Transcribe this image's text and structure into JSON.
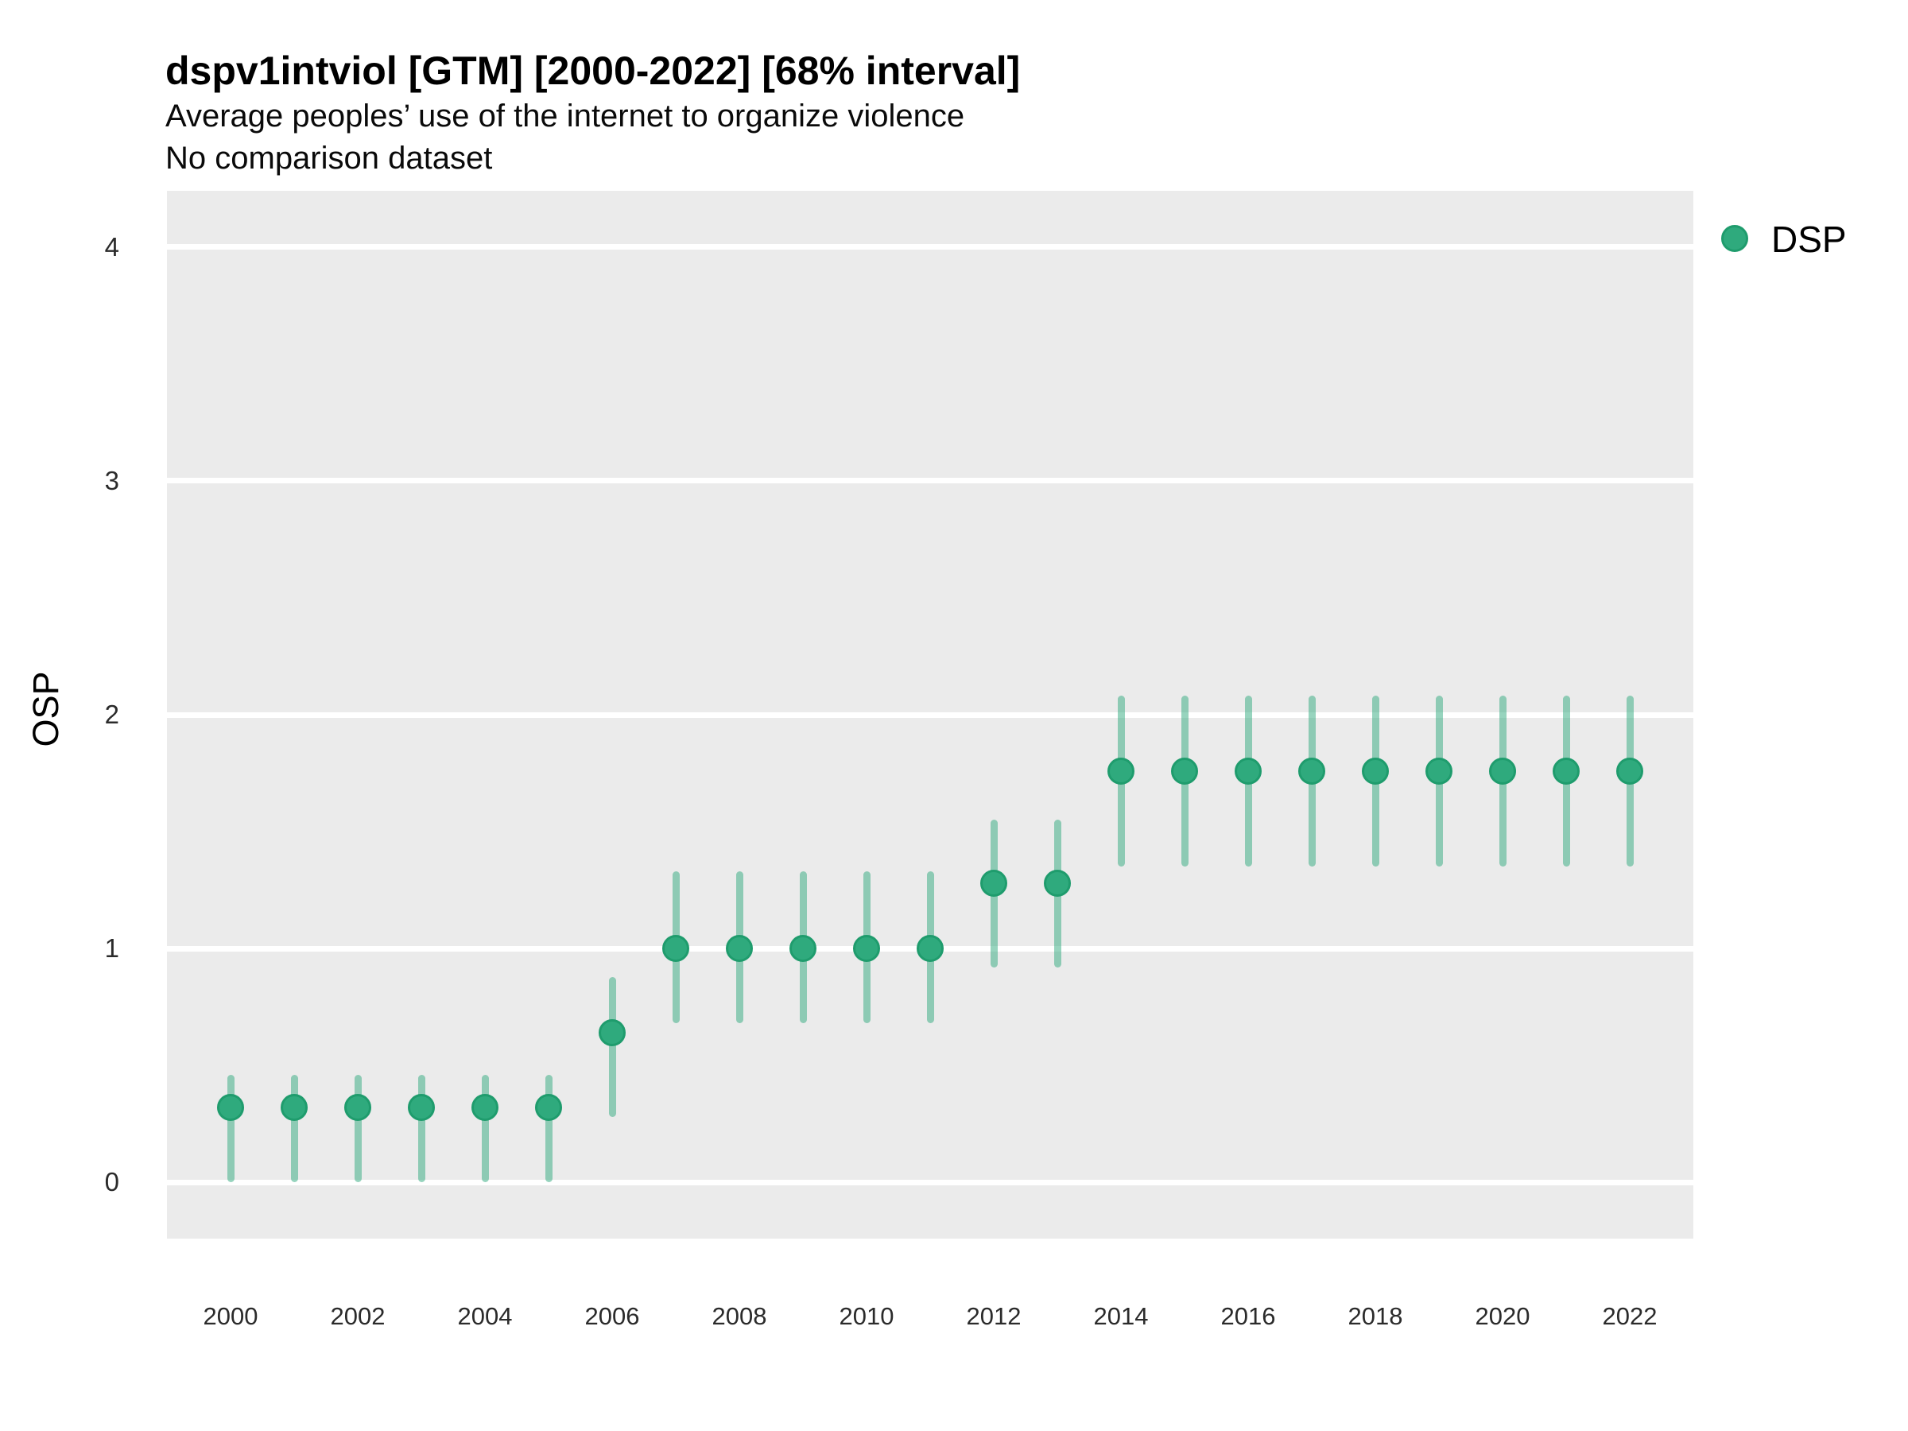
{
  "colors": {
    "plot_background": "#ebebeb",
    "gridline": "#ffffff",
    "point_fill": "#2faa7d",
    "point_stroke": "#1f9c6d",
    "errorbar": "rgba(47,170,125,0.5)",
    "text": "#000000",
    "tick_text": "#2b2b2b"
  },
  "legend": {
    "label": "DSP",
    "swatch_color": "#2faa7d",
    "position": "right"
  },
  "chart_data": {
    "type": "scatter",
    "subtype": "pointrange-interval",
    "title": "dspv1intviol [GTM] [2000-2022] [68% interval]",
    "subtitle": "Average peoples’ use of the internet to organize violence",
    "note": "No comparison dataset",
    "xlabel": "",
    "ylabel": "OSP",
    "xlim": [
      1999,
      2023
    ],
    "ylim": [
      -0.24,
      4.24
    ],
    "y_ticks": [
      0,
      1,
      2,
      3,
      4
    ],
    "x_ticks": [
      2000,
      2002,
      2004,
      2006,
      2008,
      2010,
      2012,
      2014,
      2016,
      2018,
      2020,
      2022
    ],
    "grid": "major horizontal white lines on grey panel",
    "legend_position": "right-top",
    "interval": "68%",
    "series": [
      {
        "name": "DSP",
        "x": [
          2000,
          2001,
          2002,
          2003,
          2004,
          2005,
          2006,
          2007,
          2008,
          2009,
          2010,
          2011,
          2012,
          2013,
          2014,
          2015,
          2016,
          2017,
          2018,
          2019,
          2020,
          2021,
          2022
        ],
        "y": [
          0.32,
          0.32,
          0.32,
          0.32,
          0.32,
          0.32,
          0.64,
          1.0,
          1.0,
          1.0,
          1.0,
          1.0,
          1.28,
          1.28,
          1.76,
          1.76,
          1.76,
          1.76,
          1.76,
          1.76,
          1.76,
          1.76,
          1.76
        ],
        "y_lo": [
          0.0,
          0.0,
          0.0,
          0.0,
          0.0,
          0.0,
          0.28,
          0.68,
          0.68,
          0.68,
          0.68,
          0.68,
          0.92,
          0.92,
          1.35,
          1.35,
          1.35,
          1.35,
          1.35,
          1.35,
          1.35,
          1.35,
          1.35
        ],
        "y_hi": [
          0.46,
          0.46,
          0.46,
          0.46,
          0.46,
          0.46,
          0.88,
          1.33,
          1.33,
          1.33,
          1.33,
          1.33,
          1.55,
          1.55,
          2.08,
          2.08,
          2.08,
          2.08,
          2.08,
          2.08,
          2.08,
          2.08,
          2.08
        ]
      }
    ]
  }
}
